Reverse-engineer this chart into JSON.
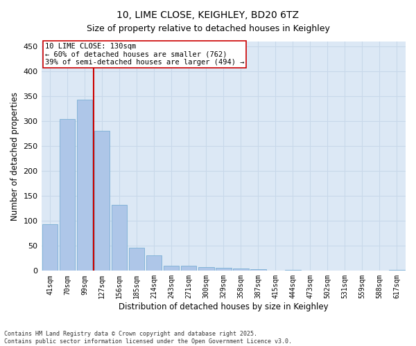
{
  "title": "10, LIME CLOSE, KEIGHLEY, BD20 6TZ",
  "subtitle": "Size of property relative to detached houses in Keighley",
  "xlabel": "Distribution of detached houses by size in Keighley",
  "ylabel": "Number of detached properties",
  "categories": [
    "41sqm",
    "70sqm",
    "99sqm",
    "127sqm",
    "156sqm",
    "185sqm",
    "214sqm",
    "243sqm",
    "271sqm",
    "300sqm",
    "329sqm",
    "358sqm",
    "387sqm",
    "415sqm",
    "444sqm",
    "473sqm",
    "502sqm",
    "531sqm",
    "559sqm",
    "588sqm",
    "617sqm"
  ],
  "values": [
    93,
    305,
    344,
    281,
    133,
    46,
    31,
    10,
    10,
    8,
    6,
    5,
    3,
    1,
    2,
    0,
    0,
    0,
    0,
    1,
    2
  ],
  "bar_color": "#aec6e8",
  "bar_edge_color": "#7aafd4",
  "vline_color": "#cc0000",
  "annotation_text": "10 LIME CLOSE: 130sqm\n← 60% of detached houses are smaller (762)\n39% of semi-detached houses are larger (494) →",
  "annotation_box_color": "#ffffff",
  "annotation_box_edge": "#cc0000",
  "grid_color": "#c8d8ea",
  "bg_color": "#dce8f5",
  "footer": "Contains HM Land Registry data © Crown copyright and database right 2025.\nContains public sector information licensed under the Open Government Licence v3.0.",
  "ylim": [
    0,
    460
  ],
  "yticks": [
    0,
    50,
    100,
    150,
    200,
    250,
    300,
    350,
    400,
    450
  ],
  "vline_index": 3
}
